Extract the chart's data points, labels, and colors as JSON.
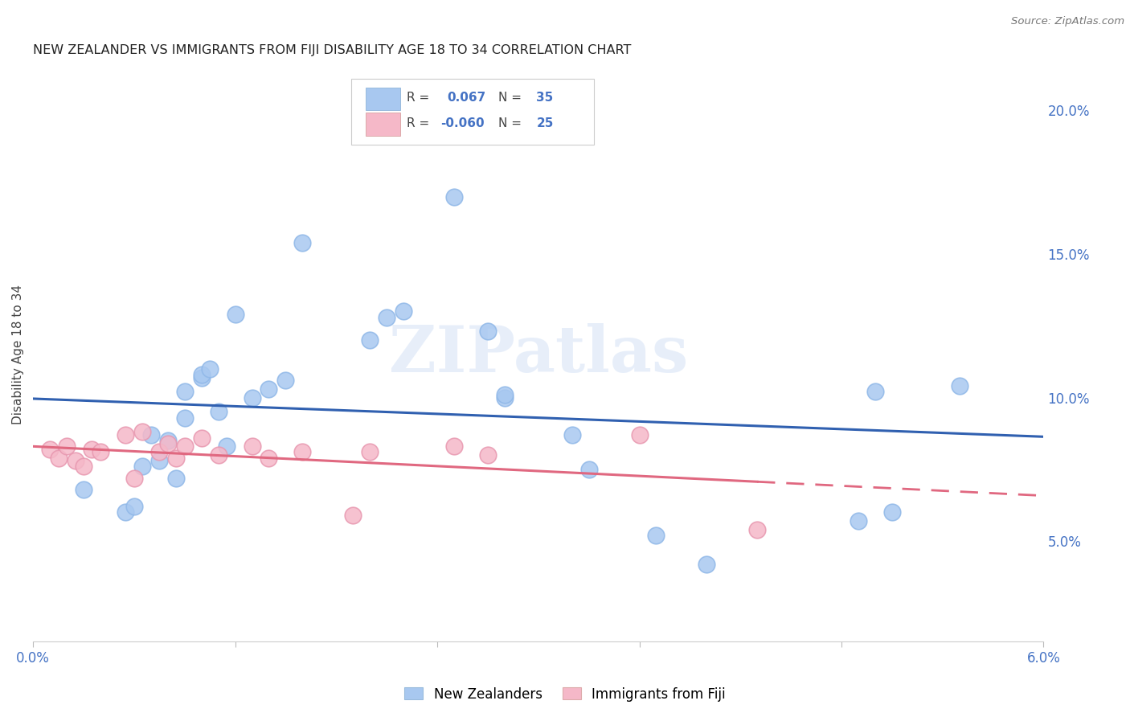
{
  "title": "NEW ZEALANDER VS IMMIGRANTS FROM FIJI DISABILITY AGE 18 TO 34 CORRELATION CHART",
  "source": "Source: ZipAtlas.com",
  "ylabel": "Disability Age 18 to 34",
  "ylabel_right_ticks": [
    "5.0%",
    "10.0%",
    "15.0%",
    "20.0%"
  ],
  "ylabel_right_vals": [
    0.05,
    0.1,
    0.15,
    0.2
  ],
  "xmin": 0.0,
  "xmax": 0.06,
  "ymin": 0.015,
  "ymax": 0.215,
  "r_blue": "0.067",
  "n_blue": "35",
  "r_pink": "-0.060",
  "n_pink": "25",
  "legend_label_blue": "New Zealanders",
  "legend_label_pink": "Immigrants from Fiji",
  "blue_color": "#a8c8f0",
  "pink_color": "#f5b8c8",
  "line_blue": "#3060b0",
  "line_pink": "#e06880",
  "blue_scatter_x": [
    0.003,
    0.0055,
    0.006,
    0.0065,
    0.007,
    0.0075,
    0.008,
    0.0085,
    0.009,
    0.009,
    0.01,
    0.01,
    0.0105,
    0.011,
    0.0115,
    0.012,
    0.013,
    0.014,
    0.015,
    0.016,
    0.02,
    0.021,
    0.022,
    0.025,
    0.027,
    0.028,
    0.028,
    0.032,
    0.033,
    0.037,
    0.04,
    0.049,
    0.05,
    0.051,
    0.055
  ],
  "blue_scatter_y": [
    0.068,
    0.06,
    0.062,
    0.076,
    0.087,
    0.078,
    0.085,
    0.072,
    0.093,
    0.102,
    0.107,
    0.108,
    0.11,
    0.095,
    0.083,
    0.129,
    0.1,
    0.103,
    0.106,
    0.154,
    0.12,
    0.128,
    0.13,
    0.17,
    0.123,
    0.1,
    0.101,
    0.087,
    0.075,
    0.052,
    0.042,
    0.057,
    0.102,
    0.06,
    0.104
  ],
  "pink_scatter_x": [
    0.001,
    0.0015,
    0.002,
    0.0025,
    0.003,
    0.0035,
    0.004,
    0.0055,
    0.006,
    0.0065,
    0.0075,
    0.008,
    0.0085,
    0.009,
    0.01,
    0.011,
    0.013,
    0.014,
    0.016,
    0.019,
    0.02,
    0.025,
    0.027,
    0.036,
    0.043
  ],
  "pink_scatter_y": [
    0.082,
    0.079,
    0.083,
    0.078,
    0.076,
    0.082,
    0.081,
    0.087,
    0.072,
    0.088,
    0.081,
    0.084,
    0.079,
    0.083,
    0.086,
    0.08,
    0.083,
    0.079,
    0.081,
    0.059,
    0.081,
    0.083,
    0.08,
    0.087,
    0.054
  ],
  "watermark": "ZIPatlas",
  "background_color": "#ffffff",
  "grid_color": "#e0e0e8"
}
